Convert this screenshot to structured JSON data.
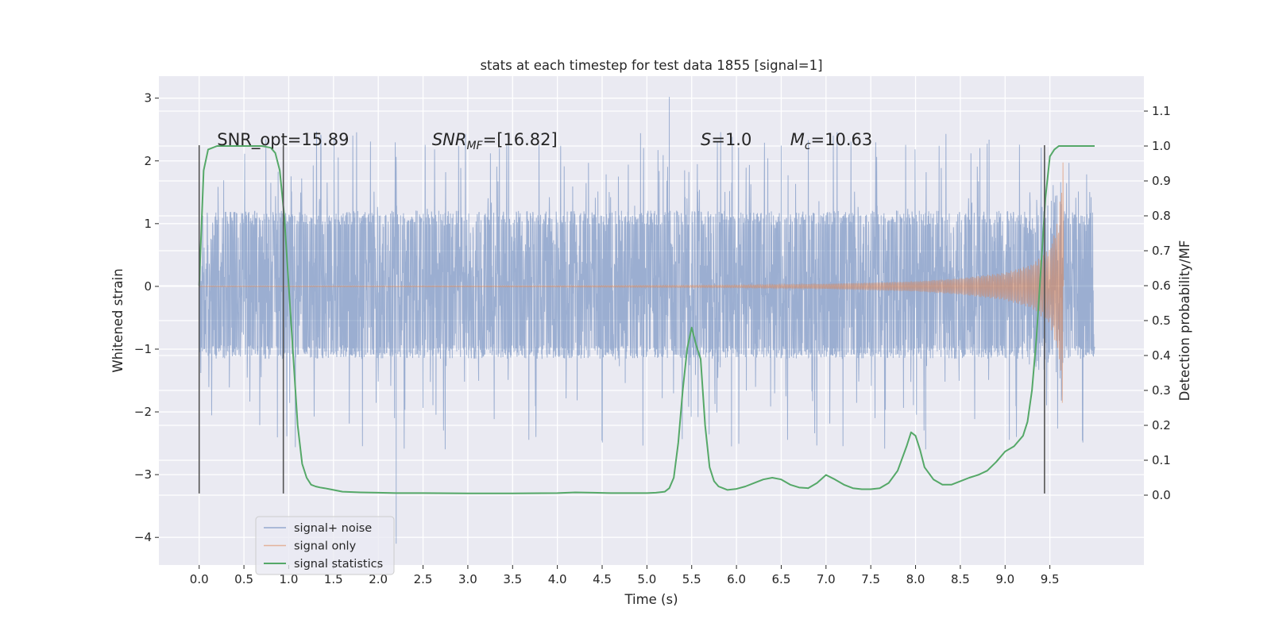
{
  "chart_data": {
    "type": "line",
    "title": "stats at each timestep for test data 1855 [signal=1]",
    "xlabel": "Time (s)",
    "ylabel_left": "Whitened strain",
    "ylabel_right": "Detection probability/MF",
    "xlim": [
      -0.45,
      10.55
    ],
    "ylim_left": [
      -4.44,
      3.35
    ],
    "ylim_right": [
      -0.2,
      1.2
    ],
    "x_ticks": [
      0.0,
      0.5,
      1.0,
      1.5,
      2.0,
      2.5,
      3.0,
      3.5,
      4.0,
      4.5,
      5.0,
      5.5,
      6.0,
      6.5,
      7.0,
      7.5,
      8.0,
      8.5,
      9.0,
      9.5
    ],
    "x_tick_labels": [
      "0.0",
      "0.5",
      "1.0",
      "1.5",
      "2.0",
      "2.5",
      "3.0",
      "3.5",
      "4.0",
      "4.5",
      "5.0",
      "5.5",
      "6.0",
      "6.5",
      "7.0",
      "7.5",
      "8.0",
      "8.5",
      "9.0",
      "9.5"
    ],
    "y_left_ticks": [
      -4,
      -3,
      -2,
      -1,
      0,
      1,
      2,
      3
    ],
    "y_left_tick_labels": [
      "−4",
      "−3",
      "−2",
      "−1",
      "0",
      "1",
      "2",
      "3"
    ],
    "y_right_ticks": [
      0.0,
      0.1,
      0.2,
      0.3,
      0.4,
      0.5,
      0.6,
      0.7,
      0.8,
      0.9,
      1.0,
      1.1
    ],
    "y_right_tick_labels": [
      "0.0",
      "0.1",
      "0.2",
      "0.3",
      "0.4",
      "0.5",
      "0.6",
      "0.7",
      "0.8",
      "0.9",
      "1.0",
      "1.1"
    ],
    "grid": true,
    "legend_position": "bottom-left",
    "annotations": [
      {
        "text": "SNR_opt=15.89",
        "x": 0.2,
        "y": 2.25
      },
      {
        "text": "SNR",
        "sub": "MF",
        "rest": "=[16.82]",
        "x": 2.6,
        "y": 2.25
      },
      {
        "text": "S",
        "rest": "=1.0",
        "x": 5.6,
        "y": 2.25
      },
      {
        "text": "M",
        "sub": "c",
        "rest": "=10.63",
        "x": 6.6,
        "y": 2.25
      }
    ],
    "vertical_lines": [
      {
        "x": 0.0,
        "y_from": -3.3,
        "y_to": 2.25
      },
      {
        "x": 0.94,
        "y_from": -3.3,
        "y_to": 2.25
      },
      {
        "x": 9.44,
        "y_from": -3.3,
        "y_to": 2.25
      }
    ],
    "series": [
      {
        "name": "signal+ noise",
        "axis": "left",
        "color": "#4c72b0",
        "x_range": [
          0.0,
          10.0
        ],
        "noise_envelope": [
          -1.1,
          1.15
        ],
        "peak_range": [
          -2.6,
          2.5
        ],
        "extremes": {
          "max": 3.02,
          "min": -4.1,
          "max_x": 5.25,
          "min_x": 2.2
        }
      },
      {
        "name": "signal only",
        "axis": "left",
        "color": "#dd8452",
        "x_range": [
          0.0,
          9.65
        ],
        "amplitude_samples": [
          {
            "x": 0.0,
            "a": 0.005
          },
          {
            "x": 4.0,
            "a": 0.01
          },
          {
            "x": 6.0,
            "a": 0.02
          },
          {
            "x": 7.0,
            "a": 0.04
          },
          {
            "x": 8.0,
            "a": 0.08
          },
          {
            "x": 8.5,
            "a": 0.13
          },
          {
            "x": 9.0,
            "a": 0.22
          },
          {
            "x": 9.3,
            "a": 0.35
          },
          {
            "x": 9.5,
            "a": 0.6
          },
          {
            "x": 9.6,
            "a": 1.1
          },
          {
            "x": 9.65,
            "a": 2.1
          }
        ]
      },
      {
        "name": "signal statistics",
        "axis": "right",
        "color": "#55a868",
        "x": [
          0.0,
          0.05,
          0.1,
          0.15,
          0.2,
          0.3,
          0.4,
          0.5,
          0.6,
          0.7,
          0.8,
          0.85,
          0.9,
          0.95,
          1.0,
          1.05,
          1.1,
          1.15,
          1.2,
          1.25,
          1.3,
          1.35,
          1.4,
          1.5,
          1.6,
          1.8,
          2.0,
          2.2,
          2.5,
          3.0,
          3.5,
          4.0,
          4.2,
          4.4,
          4.6,
          4.8,
          5.0,
          5.1,
          5.2,
          5.25,
          5.3,
          5.35,
          5.4,
          5.45,
          5.5,
          5.55,
          5.6,
          5.65,
          5.7,
          5.75,
          5.8,
          5.85,
          5.9,
          6.0,
          6.1,
          6.2,
          6.3,
          6.4,
          6.5,
          6.6,
          6.7,
          6.8,
          6.9,
          7.0,
          7.1,
          7.2,
          7.3,
          7.4,
          7.5,
          7.6,
          7.7,
          7.8,
          7.9,
          7.95,
          8.0,
          8.05,
          8.1,
          8.2,
          8.3,
          8.4,
          8.5,
          8.6,
          8.7,
          8.8,
          8.9,
          9.0,
          9.1,
          9.2,
          9.25,
          9.3,
          9.35,
          9.4,
          9.45,
          9.5,
          9.55,
          9.6,
          9.7,
          9.8,
          9.9,
          10.0
        ],
        "y": [
          0.6,
          0.93,
          0.99,
          0.995,
          1.0,
          1.0,
          1.0,
          1.0,
          1.0,
          1.0,
          0.995,
          0.98,
          0.93,
          0.8,
          0.6,
          0.4,
          0.2,
          0.09,
          0.05,
          0.03,
          0.025,
          0.022,
          0.02,
          0.015,
          0.01,
          0.008,
          0.007,
          0.006,
          0.006,
          0.005,
          0.005,
          0.006,
          0.008,
          0.007,
          0.006,
          0.006,
          0.006,
          0.007,
          0.01,
          0.02,
          0.05,
          0.15,
          0.3,
          0.42,
          0.48,
          0.43,
          0.39,
          0.2,
          0.08,
          0.04,
          0.025,
          0.02,
          0.015,
          0.018,
          0.025,
          0.035,
          0.045,
          0.05,
          0.045,
          0.03,
          0.022,
          0.02,
          0.035,
          0.058,
          0.045,
          0.03,
          0.02,
          0.017,
          0.017,
          0.02,
          0.035,
          0.07,
          0.14,
          0.18,
          0.17,
          0.13,
          0.08,
          0.045,
          0.03,
          0.03,
          0.04,
          0.05,
          0.058,
          0.07,
          0.095,
          0.125,
          0.14,
          0.17,
          0.21,
          0.3,
          0.45,
          0.65,
          0.85,
          0.97,
          0.99,
          1.0,
          1.0,
          1.0,
          1.0,
          1.0
        ]
      }
    ]
  }
}
